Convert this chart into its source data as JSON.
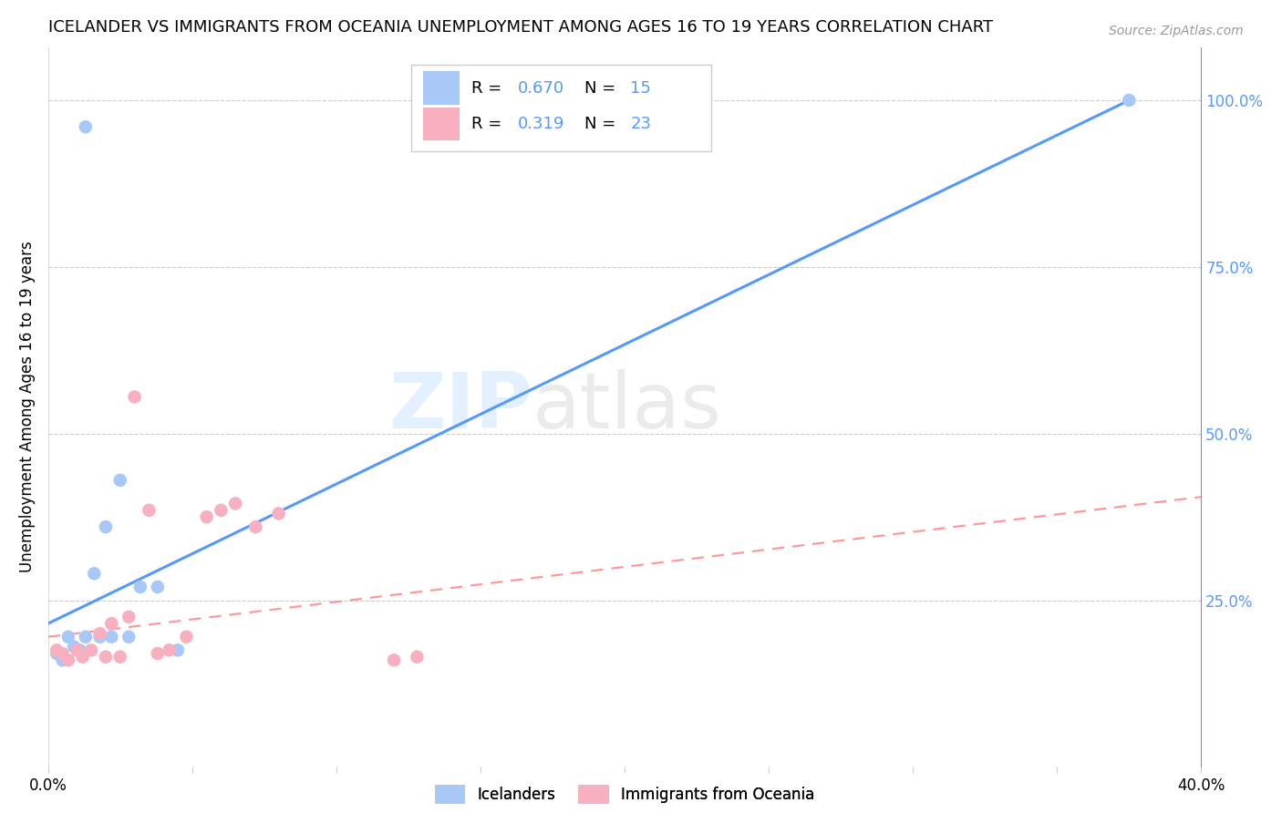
{
  "title": "ICELANDER VS IMMIGRANTS FROM OCEANIA UNEMPLOYMENT AMONG AGES 16 TO 19 YEARS CORRELATION CHART",
  "source": "Source: ZipAtlas.com",
  "ylabel": "Unemployment Among Ages 16 to 19 years",
  "xlim": [
    0.0,
    0.4
  ],
  "ylim": [
    0.0,
    1.08
  ],
  "yticks_right": [
    0.0,
    0.25,
    0.5,
    0.75,
    1.0
  ],
  "yticklabels_right": [
    "",
    "25.0%",
    "50.0%",
    "75.0%",
    "100.0%"
  ],
  "blue_scatter_x": [
    0.003,
    0.005,
    0.007,
    0.009,
    0.011,
    0.013,
    0.016,
    0.018,
    0.02,
    0.022,
    0.025,
    0.028,
    0.032,
    0.038,
    0.045
  ],
  "blue_scatter_y": [
    0.17,
    0.16,
    0.195,
    0.18,
    0.175,
    0.195,
    0.29,
    0.195,
    0.36,
    0.195,
    0.43,
    0.195,
    0.27,
    0.27,
    0.175
  ],
  "blue_outlier_x": [
    0.013
  ],
  "blue_outlier_y": [
    0.96
  ],
  "blue_line_x": [
    0.0,
    0.375
  ],
  "blue_line_y": [
    0.215,
    1.0
  ],
  "pink_scatter_x": [
    0.003,
    0.005,
    0.007,
    0.01,
    0.012,
    0.015,
    0.018,
    0.02,
    0.022,
    0.025,
    0.028,
    0.03,
    0.035,
    0.038,
    0.042,
    0.048,
    0.055,
    0.06,
    0.065,
    0.072,
    0.08,
    0.12,
    0.128
  ],
  "pink_scatter_y": [
    0.175,
    0.17,
    0.16,
    0.175,
    0.165,
    0.175,
    0.2,
    0.165,
    0.215,
    0.165,
    0.225,
    0.555,
    0.385,
    0.17,
    0.175,
    0.195,
    0.375,
    0.385,
    0.395,
    0.36,
    0.38,
    0.16,
    0.165
  ],
  "pink_line_x": [
    0.0,
    0.4
  ],
  "pink_line_y": [
    0.195,
    0.405
  ],
  "blue_color": "#a8c8f8",
  "pink_color": "#f8b0c0",
  "blue_line_color": "#5599ff",
  "pink_line_color": "#ff9999",
  "legend_R1": "0.670",
  "legend_N1": "15",
  "legend_R2": "0.319",
  "legend_N2": "23",
  "watermark_zip": "ZIP",
  "watermark_atlas": "atlas",
  "scatter_size": 110,
  "background_color": "#ffffff",
  "right_axis_color": "#5599ff",
  "grid_color": "#cccccc",
  "blue_outlier2_x": [
    0.375
  ],
  "blue_outlier2_y": [
    1.0
  ]
}
